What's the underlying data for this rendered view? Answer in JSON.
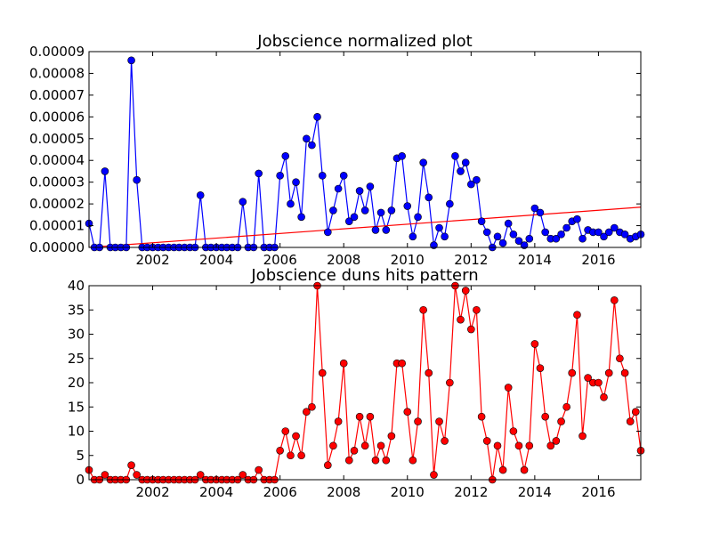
{
  "chart_data": [
    {
      "type": "line",
      "title": "Jobscience normalized plot",
      "x": [
        2000,
        2000.17,
        2000.33,
        2000.5,
        2000.67,
        2000.83,
        2001,
        2001.17,
        2001.33,
        2001.5,
        2001.67,
        2001.83,
        2002,
        2002.17,
        2002.33,
        2002.5,
        2002.67,
        2002.83,
        2003,
        2003.17,
        2003.33,
        2003.5,
        2003.67,
        2003.83,
        2004,
        2004.17,
        2004.33,
        2004.5,
        2004.67,
        2004.83,
        2005,
        2005.17,
        2005.33,
        2005.5,
        2005.67,
        2005.83,
        2006,
        2006.17,
        2006.33,
        2006.5,
        2006.67,
        2006.83,
        2007,
        2007.17,
        2007.33,
        2007.5,
        2007.67,
        2007.83,
        2008,
        2008.17,
        2008.33,
        2008.5,
        2008.67,
        2008.83,
        2009,
        2009.17,
        2009.33,
        2009.5,
        2009.67,
        2009.83,
        2010,
        2010.17,
        2010.33,
        2010.5,
        2010.67,
        2010.83,
        2011,
        2011.17,
        2011.33,
        2011.5,
        2011.67,
        2011.83,
        2012,
        2012.17,
        2012.33,
        2012.5,
        2012.67,
        2012.83,
        2013,
        2013.17,
        2013.33,
        2013.5,
        2013.67,
        2013.83,
        2014,
        2014.17,
        2014.33,
        2014.5,
        2014.67,
        2014.83,
        2015,
        2015.17,
        2015.33,
        2015.5,
        2015.67,
        2015.83,
        2016,
        2016.17,
        2016.33,
        2016.5,
        2016.67,
        2016.83,
        2017,
        2017.17,
        2017.33
      ],
      "series": [
        {
          "color": "#0000ff",
          "values": [
            1.1e-05,
            0,
            0,
            3.5e-05,
            0,
            0,
            0,
            0,
            8.6e-05,
            3.1e-05,
            0,
            0,
            0,
            0,
            0,
            0,
            0,
            0,
            0,
            0,
            0,
            2.4e-05,
            0,
            0,
            0,
            0,
            0,
            0,
            0,
            2.1e-05,
            0,
            0,
            3.4e-05,
            0,
            0,
            0,
            3.3e-05,
            4.2e-05,
            2e-05,
            3e-05,
            1.4e-05,
            5e-05,
            4.7e-05,
            6e-05,
            3.3e-05,
            7e-06,
            1.7e-05,
            2.7e-05,
            3.3e-05,
            1.2e-05,
            1.4e-05,
            2.6e-05,
            1.7e-05,
            2.8e-05,
            8e-06,
            1.6e-05,
            8e-06,
            1.7e-05,
            4.1e-05,
            4.2e-05,
            1.9e-05,
            5e-06,
            1.4e-05,
            3.9e-05,
            2.3e-05,
            1e-06,
            9e-06,
            5e-06,
            2e-05,
            4.2e-05,
            3.5e-05,
            3.9e-05,
            2.9e-05,
            3.1e-05,
            1.2e-05,
            7e-06,
            0,
            5e-06,
            2e-06,
            1.1e-05,
            6e-06,
            3e-06,
            1e-06,
            4e-06,
            1.8e-05,
            1.6e-05,
            7e-06,
            4e-06,
            4e-06,
            6e-06,
            9e-06,
            1.2e-05,
            1.3e-05,
            4e-06,
            8e-06,
            7e-06,
            7e-06,
            5e-06,
            7e-06,
            9e-06,
            7e-06,
            6e-06,
            4e-06,
            5e-06,
            6e-06
          ]
        }
      ],
      "trend_line": {
        "color": "#ff0000",
        "x": [
          2000,
          2017.33
        ],
        "values": [
          0,
          1.85e-05
        ]
      },
      "xlim": [
        2000,
        2017.33
      ],
      "xticks": [
        2002,
        2004,
        2006,
        2008,
        2010,
        2012,
        2014,
        2016
      ],
      "ylim": [
        0,
        9e-05
      ],
      "yticks": [
        {
          "value": 0,
          "label": "0.00000"
        },
        {
          "value": 1e-05,
          "label": "0.00001"
        },
        {
          "value": 2e-05,
          "label": "0.00002"
        },
        {
          "value": 3e-05,
          "label": "0.00003"
        },
        {
          "value": 4e-05,
          "label": "0.00004"
        },
        {
          "value": 5e-05,
          "label": "0.00005"
        },
        {
          "value": 6e-05,
          "label": "0.00006"
        },
        {
          "value": 7e-05,
          "label": "0.00007"
        },
        {
          "value": 8e-05,
          "label": "0.00008"
        },
        {
          "value": 9e-05,
          "label": "0.00009"
        }
      ]
    },
    {
      "type": "line",
      "title": "Jobscience duns hits pattern",
      "x": [
        2000,
        2000.17,
        2000.33,
        2000.5,
        2000.67,
        2000.83,
        2001,
        2001.17,
        2001.33,
        2001.5,
        2001.67,
        2001.83,
        2002,
        2002.17,
        2002.33,
        2002.5,
        2002.67,
        2002.83,
        2003,
        2003.17,
        2003.33,
        2003.5,
        2003.67,
        2003.83,
        2004,
        2004.17,
        2004.33,
        2004.5,
        2004.67,
        2004.83,
        2005,
        2005.17,
        2005.33,
        2005.5,
        2005.67,
        2005.83,
        2006,
        2006.17,
        2006.33,
        2006.5,
        2006.67,
        2006.83,
        2007,
        2007.17,
        2007.33,
        2007.5,
        2007.67,
        2007.83,
        2008,
        2008.17,
        2008.33,
        2008.5,
        2008.67,
        2008.83,
        2009,
        2009.17,
        2009.33,
        2009.5,
        2009.67,
        2009.83,
        2010,
        2010.17,
        2010.33,
        2010.5,
        2010.67,
        2010.83,
        2011,
        2011.17,
        2011.33,
        2011.5,
        2011.67,
        2011.83,
        2012,
        2012.17,
        2012.33,
        2012.5,
        2012.67,
        2012.83,
        2013,
        2013.17,
        2013.33,
        2013.5,
        2013.67,
        2013.83,
        2014,
        2014.17,
        2014.33,
        2014.5,
        2014.67,
        2014.83,
        2015,
        2015.17,
        2015.33,
        2015.5,
        2015.67,
        2015.83,
        2016,
        2016.17,
        2016.33,
        2016.5,
        2016.67,
        2016.83,
        2017,
        2017.17,
        2017.33
      ],
      "series": [
        {
          "color": "#ff0000",
          "values": [
            2,
            0,
            0,
            1,
            0,
            0,
            0,
            0,
            3,
            1,
            0,
            0,
            0,
            0,
            0,
            0,
            0,
            0,
            0,
            0,
            0,
            1,
            0,
            0,
            0,
            0,
            0,
            0,
            0,
            1,
            0,
            0,
            2,
            0,
            0,
            0,
            6,
            10,
            5,
            9,
            5,
            14,
            15,
            40,
            22,
            3,
            7,
            12,
            24,
            4,
            6,
            13,
            7,
            13,
            4,
            7,
            4,
            9,
            24,
            24,
            14,
            4,
            12,
            35,
            22,
            1,
            12,
            8,
            20,
            40,
            33,
            39,
            31,
            35,
            13,
            8,
            0,
            7,
            2,
            19,
            10,
            7,
            2,
            7,
            28,
            23,
            13,
            7,
            8,
            12,
            15,
            22,
            34,
            9,
            21,
            20,
            20,
            17,
            22,
            37,
            25,
            22,
            12,
            14,
            6
          ]
        }
      ],
      "xlim": [
        2000,
        2017.33
      ],
      "xticks": [
        2002,
        2004,
        2006,
        2008,
        2010,
        2012,
        2014,
        2016
      ],
      "ylim": [
        0,
        40
      ],
      "yticks": [
        0,
        5,
        10,
        15,
        20,
        25,
        30,
        35,
        40
      ]
    }
  ]
}
